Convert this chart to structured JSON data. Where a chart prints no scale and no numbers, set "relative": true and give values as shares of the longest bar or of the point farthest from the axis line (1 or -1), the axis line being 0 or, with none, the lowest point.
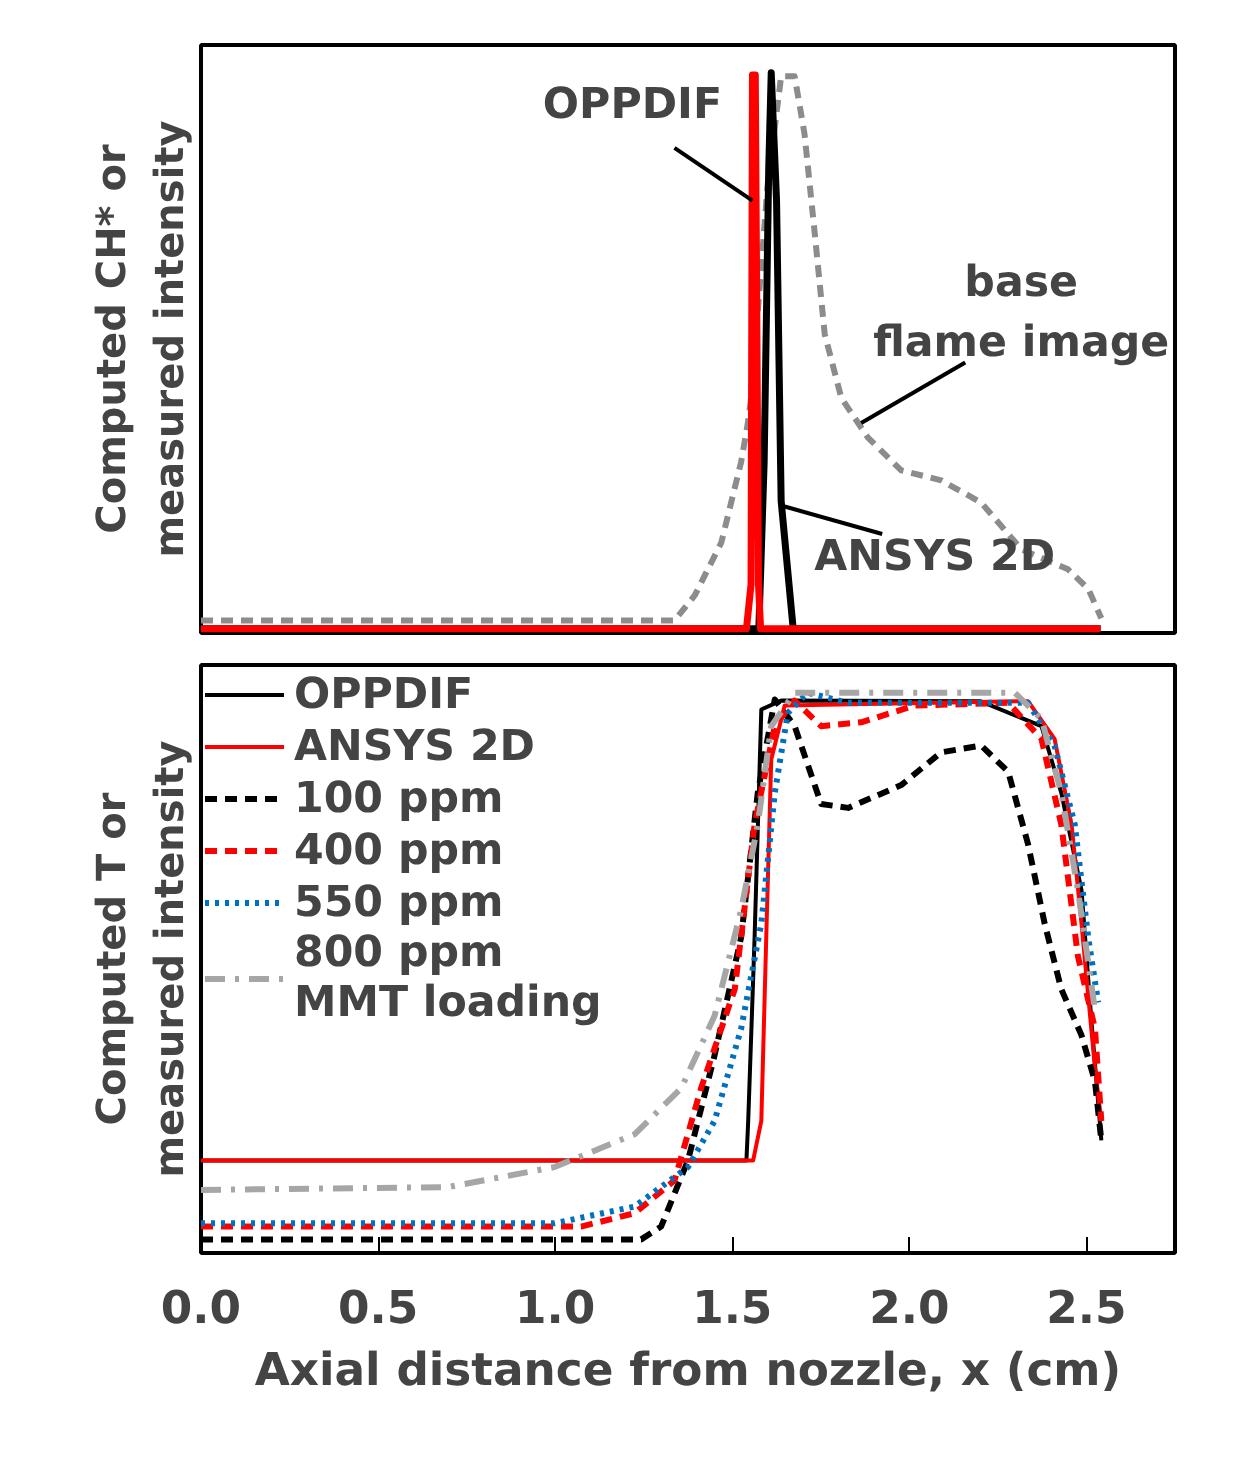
{
  "chart_data": [
    {
      "type": "line",
      "relative": true,
      "ylabel": "Computed CH* or\nmeasured intensity",
      "xlim": [
        0,
        2.75
      ],
      "tick_labels": false,
      "grid": false,
      "legend": false,
      "series": [
        {
          "color": "#8c8c8c",
          "line_style": "dashed",
          "x": [
            0,
            1.337,
            1.394,
            1.469,
            1.525,
            1.544,
            1.553,
            1.6,
            1.638,
            1.676,
            1.704,
            1.733,
            1.761,
            1.808,
            1.883,
            1.977,
            2.09,
            2.203,
            2.316,
            2.448,
            2.505,
            2.542
          ],
          "values": [
            0.015,
            0.015,
            0.06,
            0.155,
            0.3,
            0.37,
            0.415,
            0.8,
            0.994,
            0.994,
            0.89,
            0.71,
            0.53,
            0.415,
            0.344,
            0.285,
            0.267,
            0.227,
            0.143,
            0.107,
            0.072,
            0.019
          ]
        },
        {
          "color": "#000000",
          "line_style": "solid",
          "x": [
            0,
            1.575,
            1.59,
            1.603,
            1.61,
            1.625,
            1.638,
            1.672,
            2.54
          ],
          "values": [
            0,
            0,
            0.3,
            0.83,
            1.0,
            0.77,
            0.23,
            0,
            0
          ]
        },
        {
          "color": "#ff0000",
          "line_style": "solid",
          "x": [
            0,
            1.54,
            1.553,
            1.557,
            1.565,
            1.574,
            1.58,
            1.6,
            2.54
          ],
          "values": [
            0,
            0,
            0.08,
            0.996,
            0.996,
            0.08,
            0,
            0,
            0
          ]
        }
      ],
      "annotations": [
        {
          "text": "OPPDIF",
          "x": 1.557,
          "y": 0.77
        },
        {
          "text": "ANSYS 2D",
          "x": 1.648,
          "y": 0.22
        },
        {
          "text": "base\nflame image",
          "x": 1.864,
          "y": 0.37
        }
      ]
    },
    {
      "type": "line",
      "relative": true,
      "ylabel": "Computed T or\nmeasured intensity",
      "xlabel": "Axial distance from nozzle, x (cm)",
      "xlim": [
        0,
        2.75
      ],
      "xticks": [
        {
          "value": 0,
          "label": "0.0"
        },
        {
          "value": 0.5,
          "label": "0.5"
        },
        {
          "value": 1,
          "label": "1.0"
        },
        {
          "value": 1.5,
          "label": "1.5"
        },
        {
          "value": 2,
          "label": "2.0"
        },
        {
          "value": 2.5,
          "label": "2.5"
        }
      ],
      "tick_labels": "x",
      "grid": false,
      "legend": "top left",
      "series": [
        {
          "name": "OPPDIF",
          "color": "#000000",
          "line_style": "solid",
          "x": [
            0,
            1.54,
            1.545,
            1.563,
            1.582,
            1.638,
            2.2,
            2.373,
            2.429,
            2.486,
            2.514,
            2.542
          ],
          "values": [
            0.159,
            0.159,
            0.23,
            0.56,
            0.97,
            0.986,
            0.985,
            0.94,
            0.82,
            0.645,
            0.41,
            0.195
          ]
        },
        {
          "name": "ANSYS 2D",
          "color": "#ff0000",
          "line_style": "solid",
          "x": [
            0,
            1.559,
            1.582,
            1.597,
            1.61,
            1.648,
            2.335,
            2.41,
            2.458,
            2.486,
            2.524,
            2.542
          ],
          "values": [
            0.159,
            0.159,
            0.23,
            0.585,
            0.88,
            0.977,
            0.985,
            0.917,
            0.763,
            0.585,
            0.325,
            0.23
          ]
        },
        {
          "name": "100 ppm",
          "color": "#000000",
          "line_style": "dashed",
          "x": [
            0,
            1.243,
            1.299,
            1.375,
            1.45,
            1.525,
            1.572,
            1.62,
            1.676,
            1.751,
            1.827,
            1.977,
            2.09,
            2.203,
            2.279,
            2.335,
            2.382,
            2.429,
            2.486,
            2.524,
            2.542
          ],
          "values": [
            0.017,
            0.017,
            0.04,
            0.159,
            0.348,
            0.56,
            0.82,
            0.988,
            0.94,
            0.8,
            0.793,
            0.834,
            0.893,
            0.905,
            0.858,
            0.728,
            0.585,
            0.467,
            0.384,
            0.301,
            0.195
          ]
        },
        {
          "name": "400 ppm",
          "color": "#ff0000",
          "line_style": "dashed",
          "x": [
            0,
            1.073,
            1.224,
            1.337,
            1.412,
            1.507,
            1.563,
            1.62,
            1.676,
            1.751,
            1.864,
            2.015,
            2.279,
            2.373,
            2.429,
            2.476,
            2.524,
            2.542
          ],
          "values": [
            0.04,
            0.04,
            0.064,
            0.123,
            0.289,
            0.467,
            0.763,
            0.94,
            0.986,
            0.94,
            0.947,
            0.977,
            0.982,
            0.917,
            0.763,
            0.526,
            0.396,
            0.23
          ]
        },
        {
          "name": "550 ppm",
          "color": "#0070c0",
          "line_style": "dotted",
          "x": [
            0,
            0.998,
            1.224,
            1.375,
            1.45,
            1.525,
            1.582,
            1.62,
            1.657,
            1.713,
            1.827,
            2.335,
            2.41,
            2.467,
            2.505,
            2.533
          ],
          "values": [
            0.046,
            0.046,
            0.076,
            0.147,
            0.23,
            0.396,
            0.585,
            0.82,
            0.964,
            1.0,
            0.982,
            0.982,
            0.905,
            0.763,
            0.56,
            0.443
          ]
        },
        {
          "name": "800 ppm\nMMT loading",
          "color": "#a6a6a6",
          "line_style": "dashdot",
          "x": [
            0,
            0.697,
            0.998,
            1.224,
            1.356,
            1.45,
            1.525,
            1.572,
            1.61,
            1.676,
            2.298,
            2.373,
            2.429,
            2.476,
            2.524
          ],
          "values": [
            0.106,
            0.111,
            0.147,
            0.206,
            0.289,
            0.419,
            0.609,
            0.763,
            0.94,
            1.0,
            1.0,
            0.953,
            0.82,
            0.645,
            0.43
          ]
        }
      ]
    }
  ]
}
